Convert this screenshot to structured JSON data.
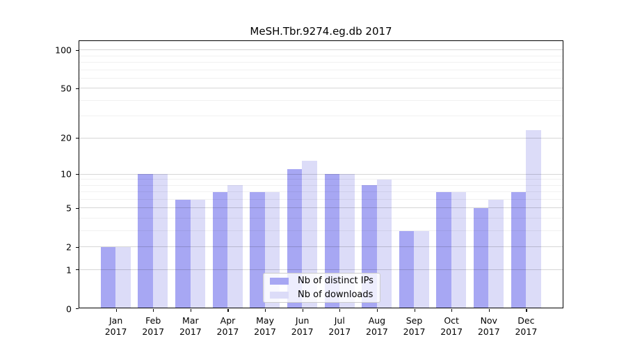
{
  "title": "MeSH.Tbr.9274.eg.db 2017",
  "chart_data": {
    "type": "bar",
    "title": "MeSH.Tbr.9274.eg.db 2017",
    "categories": [
      "Jan 2017",
      "Feb 2017",
      "Mar 2017",
      "Apr 2017",
      "May 2017",
      "Jun 2017",
      "Jul 2017",
      "Aug 2017",
      "Sep 2017",
      "Oct 2017",
      "Nov 2017",
      "Dec 2017"
    ],
    "series": [
      {
        "name": "Nb of distinct IPs",
        "color": "#a7a7f3",
        "values": [
          2,
          10,
          6,
          7,
          7,
          11,
          10,
          8,
          3,
          7,
          5,
          7
        ]
      },
      {
        "name": "Nb of downloads",
        "color": "#dcdcf8",
        "values": [
          2,
          10,
          6,
          8,
          7,
          13,
          10,
          9,
          3,
          7,
          6,
          23
        ]
      }
    ],
    "xlabel": "",
    "ylabel": "",
    "y_scale": "log1p",
    "ylim": [
      0,
      100
    ],
    "y_major_ticks": [
      0,
      1,
      2,
      5,
      10,
      20,
      50,
      100
    ],
    "y_minor_gridlines": [
      3,
      4,
      6,
      7,
      8,
      9,
      30,
      40,
      60,
      70,
      80,
      90
    ],
    "grid": true,
    "legend_position": "lower center"
  },
  "legend": {
    "items": [
      {
        "label": "Nb of distinct IPs"
      },
      {
        "label": "Nb of downloads"
      }
    ]
  }
}
